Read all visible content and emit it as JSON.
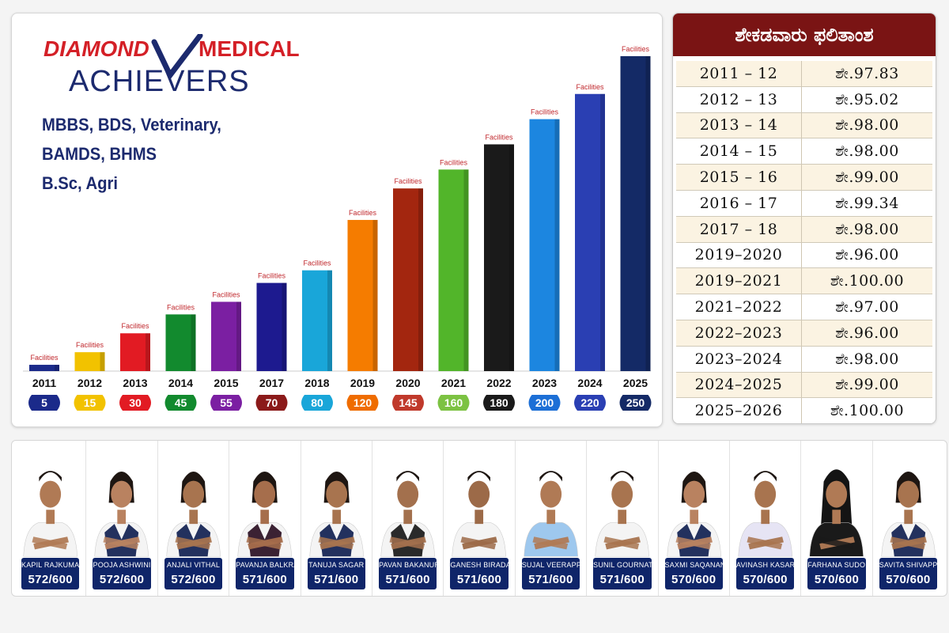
{
  "brand": {
    "name_part1": "DIAMOND",
    "name_part2": "MEDICAL",
    "tagline": "ACHIEVERS",
    "colors": {
      "red": "#d42027",
      "navy": "#1c2a6e"
    }
  },
  "courses": [
    "MBBS, BDS, Veterinary,",
    "BAMDS, BHMS",
    "B.Sc, Agri"
  ],
  "chart_data": {
    "type": "bar",
    "categories": [
      "2011",
      "2012",
      "2013",
      "2014",
      "2015",
      "2017",
      "2018",
      "2019",
      "2020",
      "2021",
      "2022",
      "2023",
      "2024",
      "2025"
    ],
    "values": [
      5,
      15,
      30,
      45,
      55,
      70,
      80,
      120,
      145,
      160,
      180,
      200,
      220,
      250
    ],
    "bar_label": "Facilities",
    "colors": [
      "#1b2a8a",
      "#f2c200",
      "#e21b23",
      "#128a2e",
      "#7b1fa2",
      "#1d1a8f",
      "#19a6d9",
      "#f57c00",
      "#a3260f",
      "#52b52a",
      "#1a1a1a",
      "#1c86e0",
      "#2a3fb3",
      "#142a66"
    ],
    "badge_colors": [
      "#1b2a8a",
      "#f2c200",
      "#e21b23",
      "#128a2e",
      "#7b1fa2",
      "#8b1a1a",
      "#19a6d9",
      "#ef6c00",
      "#c0392b",
      "#7cc242",
      "#1a1a1a",
      "#1c6fd6",
      "#2a3fb3",
      "#142a66"
    ],
    "title": "",
    "xlabel": "",
    "ylabel": ""
  },
  "results_table": {
    "header": "ಶೇಕಡವಾರು ಫಲಿತಾಂಶ",
    "rows": [
      {
        "year": "2011 – 12",
        "result": "ಶೇ.97.83"
      },
      {
        "year": "2012 – 13",
        "result": "ಶೇ.95.02"
      },
      {
        "year": "2013 – 14",
        "result": "ಶೇ.98.00"
      },
      {
        "year": "2014 – 15",
        "result": "ಶೇ.98.00"
      },
      {
        "year": "2015 – 16",
        "result": "ಶೇ.99.00"
      },
      {
        "year": "2016 – 17",
        "result": "ಶೇ.99.34"
      },
      {
        "year": "2017 – 18",
        "result": "ಶೇ.98.00"
      },
      {
        "year": "2019–2020",
        "result": "ಶೇ.96.00"
      },
      {
        "year": "2019–2021",
        "result": "ಶೇ.100.00"
      },
      {
        "year": "2021–2022",
        "result": "ಶೇ.97.00"
      },
      {
        "year": "2022–2023",
        "result": "ಶೇ.96.00"
      },
      {
        "year": "2023–2024",
        "result": "ಶೇ.98.00"
      },
      {
        "year": "2024–2025",
        "result": "ಶೇ.99.00"
      },
      {
        "year": "2025–2026",
        "result": "ಶೇ.100.00"
      }
    ],
    "header_color": "#7a1414"
  },
  "achievers": [
    {
      "name": "KAPIL RAJKUMAR",
      "score": "572/600",
      "shirt": "#f4f4f4",
      "vest": "",
      "skin": "#b07a55",
      "gender": "m"
    },
    {
      "name": "POOJA ASHWINI",
      "score": "572/600",
      "shirt": "#f4f4f4",
      "vest": "#23315e",
      "skin": "#b98260",
      "gender": "f"
    },
    {
      "name": "ANJALI VITHAL",
      "score": "572/600",
      "shirt": "#f4f4f4",
      "vest": "#23315e",
      "skin": "#a8744f",
      "gender": "f"
    },
    {
      "name": "PAVANJA BALKRATTI",
      "score": "571/600",
      "shirt": "#f4f4f4",
      "vest": "#3b2233",
      "skin": "#a66e4c",
      "gender": "f"
    },
    {
      "name": "TANUJA SAGAR",
      "score": "571/600",
      "shirt": "#f4f4f4",
      "vest": "#23315e",
      "skin": "#a8744f",
      "gender": "f"
    },
    {
      "name": "PAVAN BAKANUR",
      "score": "571/600",
      "shirt": "#f4f4f4",
      "vest": "#2a2a2a",
      "skin": "#a3704d",
      "gender": "m"
    },
    {
      "name": "GANESH BIRADAR",
      "score": "571/600",
      "shirt": "#f4f4f4",
      "vest": "",
      "skin": "#9c6a48",
      "gender": "m"
    },
    {
      "name": "SUJAL VEERAPPA",
      "score": "571/600",
      "shirt": "#9ec8ee",
      "vest": "",
      "skin": "#b07a55",
      "gender": "m"
    },
    {
      "name": "SUNIL GOURNATH",
      "score": "571/600",
      "shirt": "#f4f4f4",
      "vest": "",
      "skin": "#a8744f",
      "gender": "m"
    },
    {
      "name": "SAXMI SAQANAND",
      "score": "570/600",
      "shirt": "#f4f4f4",
      "vest": "#23315e",
      "skin": "#b98260",
      "gender": "f"
    },
    {
      "name": "AVINASH KASARMATH",
      "score": "570/600",
      "shirt": "#e6e4f4",
      "vest": "",
      "skin": "#a8744f",
      "gender": "m"
    },
    {
      "name": "FARHANA SUDODIN",
      "score": "570/600",
      "shirt": "#1a1a1a",
      "vest": "",
      "skin": "#b07a55",
      "gender": "h"
    },
    {
      "name": "SAVITA SHIVAPPA",
      "score": "570/600",
      "shirt": "#f4f4f4",
      "vest": "#23315e",
      "skin": "#a8744f",
      "gender": "f"
    }
  ],
  "plate_color": "#0f2569"
}
